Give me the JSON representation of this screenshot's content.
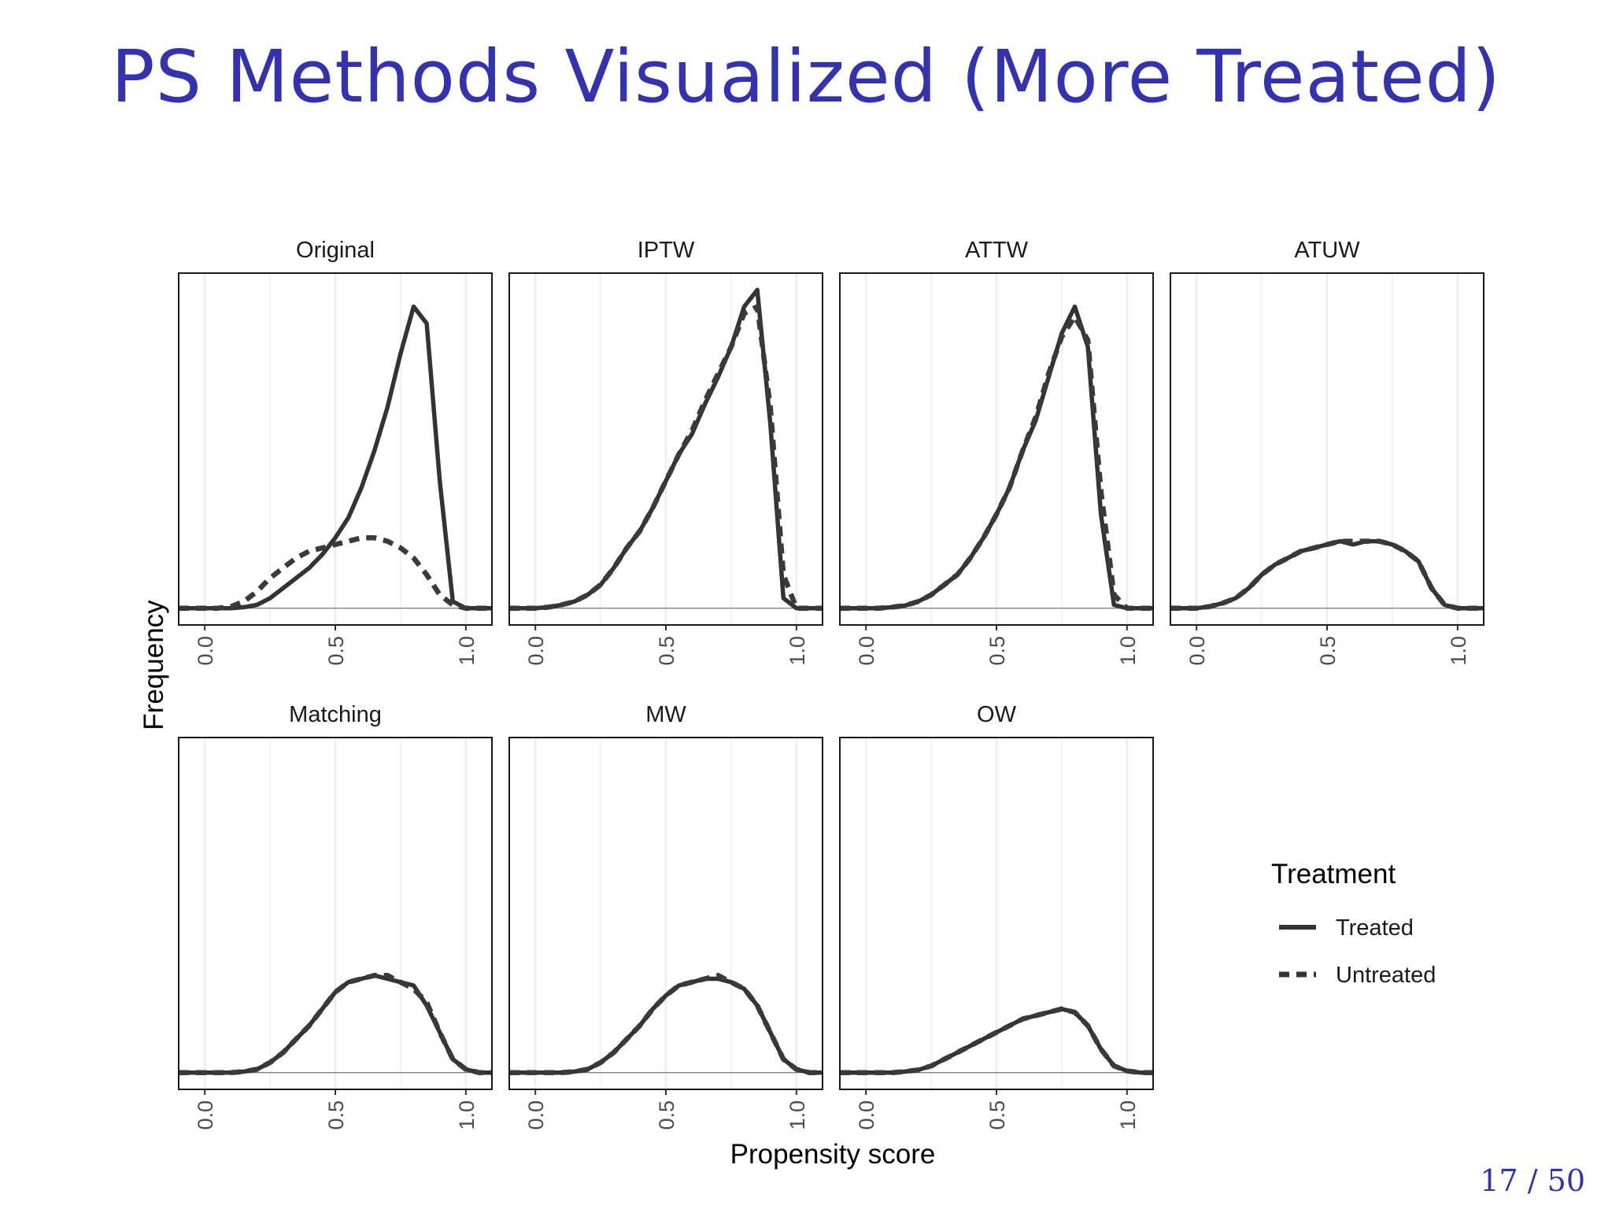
{
  "slide": {
    "title": "PS Methods Visualized (More Treated)",
    "page_number": "17 / 50"
  },
  "chart_data": {
    "type": "line",
    "xlabel": "Propensity score",
    "ylabel": "Frequency",
    "xlim": [
      -0.1,
      1.1
    ],
    "ylim": [
      -0.05,
      1.0
    ],
    "x_ticks": [
      "0.0",
      "0.5",
      "1.0"
    ],
    "x_tick_values": [
      0,
      0.5,
      1.0
    ],
    "grid": true,
    "line_color": "#333333",
    "legend": {
      "title": "Treatment",
      "position": "right",
      "entries": [
        {
          "label": "Treated",
          "style": "solid"
        },
        {
          "label": "Untreated",
          "style": "dashed"
        }
      ]
    },
    "x": [
      -0.1,
      -0.05,
      0.0,
      0.05,
      0.1,
      0.15,
      0.2,
      0.25,
      0.3,
      0.35,
      0.4,
      0.45,
      0.5,
      0.55,
      0.6,
      0.65,
      0.7,
      0.75,
      0.8,
      0.85,
      0.9,
      0.95,
      1.0,
      1.05,
      1.1
    ],
    "panels": [
      {
        "title": "Original",
        "series": [
          {
            "name": "Treated",
            "values": [
              0,
              0,
              0,
              0,
              0,
              0.003,
              0.01,
              0.03,
              0.06,
              0.09,
              0.12,
              0.16,
              0.21,
              0.27,
              0.36,
              0.47,
              0.6,
              0.76,
              0.9,
              0.85,
              0.38,
              0.02,
              0,
              0,
              0
            ]
          },
          {
            "name": "Untreated",
            "values": [
              0,
              0,
              0,
              0,
              0.005,
              0.02,
              0.05,
              0.09,
              0.12,
              0.15,
              0.17,
              0.18,
              0.19,
              0.2,
              0.21,
              0.21,
              0.2,
              0.18,
              0.15,
              0.1,
              0.04,
              0.01,
              0,
              0,
              0
            ]
          }
        ]
      },
      {
        "title": "IPTW",
        "series": [
          {
            "name": "Treated",
            "values": [
              0,
              0,
              0,
              0.003,
              0.01,
              0.02,
              0.04,
              0.07,
              0.12,
              0.18,
              0.23,
              0.3,
              0.38,
              0.46,
              0.52,
              0.61,
              0.69,
              0.78,
              0.9,
              0.95,
              0.55,
              0.03,
              0,
              0,
              0
            ]
          },
          {
            "name": "Untreated",
            "values": [
              0,
              0,
              0,
              0.003,
              0.01,
              0.02,
              0.04,
              0.07,
              0.12,
              0.18,
              0.23,
              0.3,
              0.38,
              0.46,
              0.53,
              0.62,
              0.7,
              0.78,
              0.88,
              0.9,
              0.6,
              0.1,
              0,
              0,
              0
            ]
          }
        ]
      },
      {
        "title": "ATTW",
        "series": [
          {
            "name": "Treated",
            "values": [
              0,
              0,
              0,
              0,
              0.003,
              0.008,
              0.02,
              0.04,
              0.07,
              0.1,
              0.15,
              0.21,
              0.28,
              0.36,
              0.47,
              0.56,
              0.69,
              0.82,
              0.9,
              0.78,
              0.28,
              0.01,
              0,
              0,
              0
            ]
          },
          {
            "name": "Untreated",
            "values": [
              0,
              0,
              0,
              0,
              0.003,
              0.008,
              0.02,
              0.04,
              0.07,
              0.1,
              0.15,
              0.21,
              0.28,
              0.36,
              0.47,
              0.57,
              0.7,
              0.81,
              0.87,
              0.8,
              0.35,
              0.04,
              0,
              0,
              0
            ]
          }
        ]
      },
      {
        "title": "ATUW",
        "series": [
          {
            "name": "Treated",
            "values": [
              0,
              0,
              0,
              0.005,
              0.015,
              0.03,
              0.06,
              0.1,
              0.13,
              0.15,
              0.17,
              0.18,
              0.19,
              0.2,
              0.19,
              0.2,
              0.2,
              0.19,
              0.17,
              0.14,
              0.06,
              0.01,
              0,
              0,
              0
            ]
          },
          {
            "name": "Untreated",
            "values": [
              0,
              0,
              0,
              0.005,
              0.015,
              0.03,
              0.06,
              0.1,
              0.13,
              0.15,
              0.17,
              0.18,
              0.19,
              0.2,
              0.2,
              0.2,
              0.2,
              0.19,
              0.17,
              0.14,
              0.06,
              0.01,
              0,
              0,
              0
            ]
          }
        ]
      },
      {
        "title": "Matching",
        "series": [
          {
            "name": "Treated",
            "values": [
              0,
              0,
              0,
              0,
              0,
              0.003,
              0.01,
              0.03,
              0.06,
              0.1,
              0.14,
              0.19,
              0.24,
              0.27,
              0.28,
              0.29,
              0.28,
              0.27,
              0.26,
              0.2,
              0.12,
              0.04,
              0.01,
              0,
              0
            ]
          },
          {
            "name": "Untreated",
            "values": [
              0,
              0,
              0,
              0,
              0,
              0.003,
              0.01,
              0.03,
              0.06,
              0.1,
              0.14,
              0.19,
              0.24,
              0.27,
              0.28,
              0.29,
              0.29,
              0.27,
              0.25,
              0.21,
              0.12,
              0.04,
              0.01,
              0,
              0
            ]
          }
        ]
      },
      {
        "title": "MW",
        "series": [
          {
            "name": "Treated",
            "values": [
              0,
              0,
              0,
              0,
              0,
              0.003,
              0.01,
              0.03,
              0.06,
              0.1,
              0.14,
              0.19,
              0.23,
              0.26,
              0.27,
              0.28,
              0.28,
              0.27,
              0.25,
              0.2,
              0.12,
              0.04,
              0.01,
              0,
              0
            ]
          },
          {
            "name": "Untreated",
            "values": [
              0,
              0,
              0,
              0,
              0,
              0.003,
              0.01,
              0.03,
              0.06,
              0.1,
              0.14,
              0.19,
              0.23,
              0.26,
              0.27,
              0.28,
              0.29,
              0.27,
              0.25,
              0.2,
              0.12,
              0.04,
              0.01,
              0,
              0
            ]
          }
        ]
      },
      {
        "title": "OW",
        "series": [
          {
            "name": "Treated",
            "values": [
              0,
              0,
              0,
              0,
              0,
              0.003,
              0.008,
              0.02,
              0.04,
              0.06,
              0.08,
              0.1,
              0.12,
              0.14,
              0.16,
              0.17,
              0.18,
              0.19,
              0.18,
              0.14,
              0.07,
              0.02,
              0.005,
              0,
              0
            ]
          },
          {
            "name": "Untreated",
            "values": [
              0,
              0,
              0,
              0,
              0,
              0.003,
              0.008,
              0.02,
              0.04,
              0.06,
              0.08,
              0.1,
              0.12,
              0.14,
              0.16,
              0.17,
              0.18,
              0.19,
              0.18,
              0.14,
              0.07,
              0.02,
              0.005,
              0,
              0
            ]
          }
        ]
      }
    ]
  }
}
